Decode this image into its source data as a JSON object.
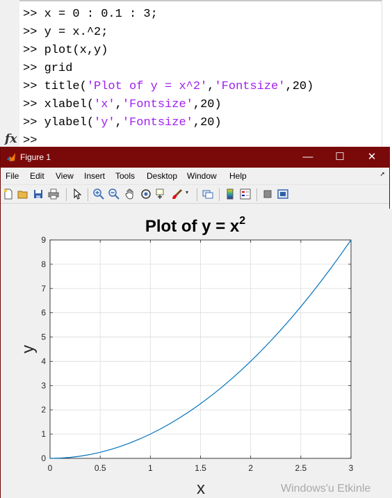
{
  "command_window": {
    "lines": [
      {
        "prompt": ">>",
        "code": "x = 0 : 0.1 : 3;"
      },
      {
        "prompt": ">>",
        "code": "y = x.^2;"
      },
      {
        "prompt": ">>",
        "code": "plot(x,y)"
      },
      {
        "prompt": ">>",
        "code": "grid"
      },
      {
        "prompt": ">>",
        "code_pre": "title(",
        "string1": "'Plot of y = x^2'",
        "mid": ",",
        "string2": "'Fontsize'",
        "code_post": ",20)"
      },
      {
        "prompt": ">>",
        "code_pre": "xlabel(",
        "string1": "'x'",
        "mid": ",",
        "string2": "'Fontsize'",
        "code_post": ",20)"
      },
      {
        "prompt": ">>",
        "code_pre": "ylabel(",
        "string1": "'y'",
        "mid": ",",
        "string2": "'Fontsize'",
        "code_post": ",20)"
      }
    ],
    "current_prompt": ">>",
    "fx_label": "fx"
  },
  "figure_window": {
    "title": "Figure 1",
    "controls": {
      "minimize": "—",
      "maximize": "☐",
      "close": "✕"
    },
    "menu": [
      "File",
      "Edit",
      "View",
      "Insert",
      "Tools",
      "Desktop",
      "Window",
      "Help"
    ],
    "toolbar_icons": [
      "new-figure-icon",
      "open-file-icon",
      "save-icon",
      "print-icon",
      "edit-plot-arrow-icon",
      "zoom-in-icon",
      "zoom-out-icon",
      "pan-hand-icon",
      "rotate-3d-icon",
      "data-cursor-icon",
      "brush-icon",
      "link-plot-icon",
      "insert-colorbar-icon",
      "insert-legend-icon",
      "hide-plot-tools-icon",
      "show-plot-tools-icon"
    ]
  },
  "chart_data": {
    "type": "line",
    "title_base": "Plot of y = x",
    "title_superscript": "2",
    "xlabel": "x",
    "ylabel": "y",
    "xlim": [
      0,
      3
    ],
    "ylim": [
      0,
      9
    ],
    "x_ticks": [
      "0",
      "0.5",
      "1",
      "1.5",
      "2",
      "2.5",
      "3"
    ],
    "y_ticks": [
      "0",
      "1",
      "2",
      "3",
      "4",
      "5",
      "6",
      "7",
      "8",
      "9"
    ],
    "grid": true,
    "line_color": "#0072bd",
    "series": [
      {
        "x": [
          0,
          0.1,
          0.2,
          0.3,
          0.4,
          0.5,
          0.6,
          0.7,
          0.8,
          0.9,
          1.0,
          1.1,
          1.2,
          1.3,
          1.4,
          1.5,
          1.6,
          1.7,
          1.8,
          1.9,
          2.0,
          2.1,
          2.2,
          2.3,
          2.4,
          2.5,
          2.6,
          2.7,
          2.8,
          2.9,
          3.0
        ],
        "values": [
          0,
          0.01,
          0.04,
          0.09,
          0.16,
          0.25,
          0.36,
          0.49,
          0.64,
          0.81,
          1.0,
          1.21,
          1.44,
          1.69,
          1.96,
          2.25,
          2.56,
          2.89,
          3.24,
          3.61,
          4.0,
          4.41,
          4.84,
          5.29,
          5.76,
          6.25,
          6.76,
          7.29,
          7.84,
          8.41,
          9.0
        ]
      }
    ]
  },
  "watermark": "Windows'u Etkinle"
}
